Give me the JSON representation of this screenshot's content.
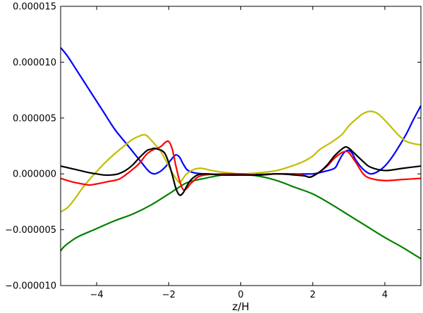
{
  "chart_data": {
    "type": "line",
    "title": "",
    "xlabel": "z/H",
    "ylabel": "",
    "xlim": [
      -5,
      5
    ],
    "ylim": [
      -1e-05,
      1.5e-05
    ],
    "xticks": [
      -4,
      -2,
      0,
      2,
      4
    ],
    "xtick_labels": [
      "−4",
      "−2",
      "0",
      "2",
      "4"
    ],
    "yticks": [
      1.5e-05,
      1e-05,
      5e-06,
      0,
      -5e-06,
      -1e-05
    ],
    "ytick_labels": [
      "0.000015",
      "0.000010",
      "0.000005",
      "0.000000",
      "−0.000005",
      "−0.000010"
    ],
    "grid": false,
    "series": [
      {
        "color": "#0000ff",
        "x": [
          -5.0,
          -4.8,
          -4.5,
          -4.2,
          -4.0,
          -3.8,
          -3.5,
          -3.2,
          -3.0,
          -2.8,
          -2.6,
          -2.5,
          -2.4,
          -2.3,
          -2.2,
          -2.1,
          -2.0,
          -1.9,
          -1.8,
          -1.7,
          -1.6,
          -1.5,
          -1.4,
          -1.3,
          -1.2,
          -1.0,
          -0.5,
          0.0,
          0.5,
          1.0,
          1.5,
          2.0,
          2.3,
          2.6,
          2.7,
          2.8,
          2.9,
          3.0,
          3.1,
          3.2,
          3.4,
          3.6,
          3.8,
          4.0,
          4.2,
          4.4,
          4.6,
          4.8,
          5.0
        ],
        "y": [
          1.13e-05,
          1.05e-05,
          9e-06,
          7.5e-06,
          6.5e-06,
          5.5e-06,
          4e-06,
          2.8e-06,
          2e-06,
          1.2e-06,
          4e-07,
          1e-07,
          0.0,
          1e-07,
          3e-07,
          6e-07,
          1e-06,
          1.4e-06,
          1.7e-06,
          1.5e-06,
          9e-07,
          4e-07,
          2e-07,
          1e-07,
          5e-08,
          0.0,
          -5e-08,
          -1e-07,
          -5e-08,
          0.0,
          0.0,
          0.0,
          2e-07,
          5e-07,
          1e-06,
          1.6e-06,
          2e-06,
          2.1e-06,
          1.8e-06,
          1.2e-06,
          4e-07,
          0.0,
          2e-07,
          7e-07,
          1.5e-06,
          2.5e-06,
          3.6e-06,
          4.9e-06,
          6.1e-06
        ]
      },
      {
        "color": "#008000",
        "x": [
          -5.0,
          -4.9,
          -4.7,
          -4.5,
          -4.0,
          -3.5,
          -3.0,
          -2.5,
          -2.0,
          -1.5,
          -1.0,
          -0.5,
          0.0,
          0.5,
          1.0,
          1.5,
          2.0,
          2.5,
          3.0,
          3.5,
          4.0,
          4.5,
          5.0
        ],
        "y": [
          -6.9e-06,
          -6.5e-06,
          -6e-06,
          -5.6e-06,
          -4.9e-06,
          -4.2e-06,
          -3.6e-06,
          -2.8e-06,
          -1.8e-06,
          -8e-07,
          -4e-07,
          -1e-07,
          -5e-08,
          -2e-07,
          -6e-07,
          -1.2e-06,
          -1.8e-06,
          -2.7e-06,
          -3.7e-06,
          -4.7e-06,
          -5.7e-06,
          -6.6e-06,
          -7.6e-06
        ]
      },
      {
        "color": "#bfbf00",
        "x": [
          -5.0,
          -4.8,
          -4.6,
          -4.4,
          -4.2,
          -4.0,
          -3.8,
          -3.5,
          -3.2,
          -3.0,
          -2.8,
          -2.7,
          -2.6,
          -2.4,
          -2.2,
          -2.0,
          -1.9,
          -1.8,
          -1.7,
          -1.6,
          -1.5,
          -1.3,
          -1.1,
          -0.8,
          -0.5,
          0.0,
          0.5,
          1.0,
          1.5,
          1.8,
          2.0,
          2.2,
          2.5,
          2.8,
          3.0,
          3.2,
          3.4,
          3.6,
          3.8,
          4.0,
          4.2,
          4.4,
          4.6,
          4.8,
          5.0
        ],
        "y": [
          -3.4e-06,
          -3e-06,
          -2.2e-06,
          -1.3e-06,
          -5e-07,
          2e-07,
          9e-07,
          1.8e-06,
          2.6e-06,
          3.1e-06,
          3.4e-06,
          3.5e-06,
          3.4e-06,
          2.7e-06,
          1.9e-06,
          7e-07,
          1e-07,
          -4e-07,
          -8e-07,
          -4e-07,
          0.0,
          4e-07,
          5e-07,
          3e-07,
          1.5e-07,
          0.0,
          1e-07,
          3e-07,
          8e-07,
          1.2e-06,
          1.6e-06,
          2.2e-06,
          2.8e-06,
          3.5e-06,
          4.3e-06,
          4.9e-06,
          5.4e-06,
          5.6e-06,
          5.4e-06,
          4.8e-06,
          4.1e-06,
          3.4e-06,
          2.9e-06,
          2.7e-06,
          2.6e-06
        ]
      },
      {
        "color": "#ff0000",
        "x": [
          -5.0,
          -4.7,
          -4.4,
          -4.2,
          -4.0,
          -3.7,
          -3.4,
          -3.2,
          -3.0,
          -2.8,
          -2.6,
          -2.4,
          -2.3,
          -2.2,
          -2.1,
          -2.0,
          -1.9,
          -1.8,
          -1.7,
          -1.6,
          -1.5,
          -1.4,
          -1.3,
          -1.2,
          -1.0,
          -0.5,
          0.0,
          0.5,
          1.0,
          1.5,
          1.7,
          1.9,
          2.0,
          2.1,
          2.2,
          2.4,
          2.6,
          2.8,
          2.9,
          3.0,
          3.2,
          3.4,
          3.6,
          4.0,
          4.5,
          5.0
        ],
        "y": [
          -4e-07,
          -7e-07,
          -9e-07,
          -1e-06,
          -9e-07,
          -7e-07,
          -5e-07,
          -1e-07,
          4e-07,
          1e-06,
          1.8e-06,
          2.2e-06,
          2.3e-06,
          2.5e-06,
          2.8e-06,
          2.9e-06,
          2.2e-06,
          7e-07,
          -6e-07,
          -1.4e-06,
          -1.3e-06,
          -9e-07,
          -6e-07,
          -3e-07,
          -1e-07,
          0.0,
          0.0,
          -1e-07,
          0.0,
          0.0,
          -1e-07,
          -3e-07,
          -2e-07,
          0.0,
          2e-07,
          7e-07,
          1.4e-06,
          1.9e-06,
          2e-06,
          1.9e-06,
          1e-06,
          0.0,
          -4e-07,
          -6e-07,
          -5e-07,
          -4e-07
        ]
      },
      {
        "color": "#000000",
        "x": [
          -5.0,
          -4.6,
          -4.2,
          -4.0,
          -3.8,
          -3.6,
          -3.4,
          -3.2,
          -3.0,
          -2.8,
          -2.6,
          -2.5,
          -2.4,
          -2.3,
          -2.2,
          -2.1,
          -2.0,
          -1.9,
          -1.8,
          -1.7,
          -1.6,
          -1.5,
          -1.4,
          -1.3,
          -1.2,
          -1.0,
          -0.5,
          0.0,
          0.5,
          1.0,
          1.5,
          1.8,
          1.9,
          2.0,
          2.2,
          2.4,
          2.6,
          2.8,
          2.9,
          3.0,
          3.2,
          3.4,
          3.6,
          4.0,
          4.5,
          5.0
        ],
        "y": [
          7e-07,
          4e-07,
          1e-07,
          0.0,
          -1e-07,
          -1e-07,
          0.0,
          3e-07,
          8e-07,
          1.5e-06,
          2.1e-06,
          2.2e-06,
          2.3e-06,
          2.2e-06,
          2.1e-06,
          1.8e-06,
          1e-06,
          -1e-07,
          -1.3e-06,
          -1.9e-06,
          -1.7e-06,
          -1.1e-06,
          -6e-07,
          -3e-07,
          -1e-07,
          0.0,
          -1e-07,
          -1e-07,
          -1e-07,
          0.0,
          -1e-07,
          -2e-07,
          -3e-07,
          -2e-07,
          2e-07,
          8e-07,
          1.6e-06,
          2.2e-06,
          2.4e-06,
          2.3e-06,
          1.7e-06,
          1.1e-06,
          6e-07,
          3e-07,
          5e-07,
          7e-07
        ]
      }
    ]
  }
}
